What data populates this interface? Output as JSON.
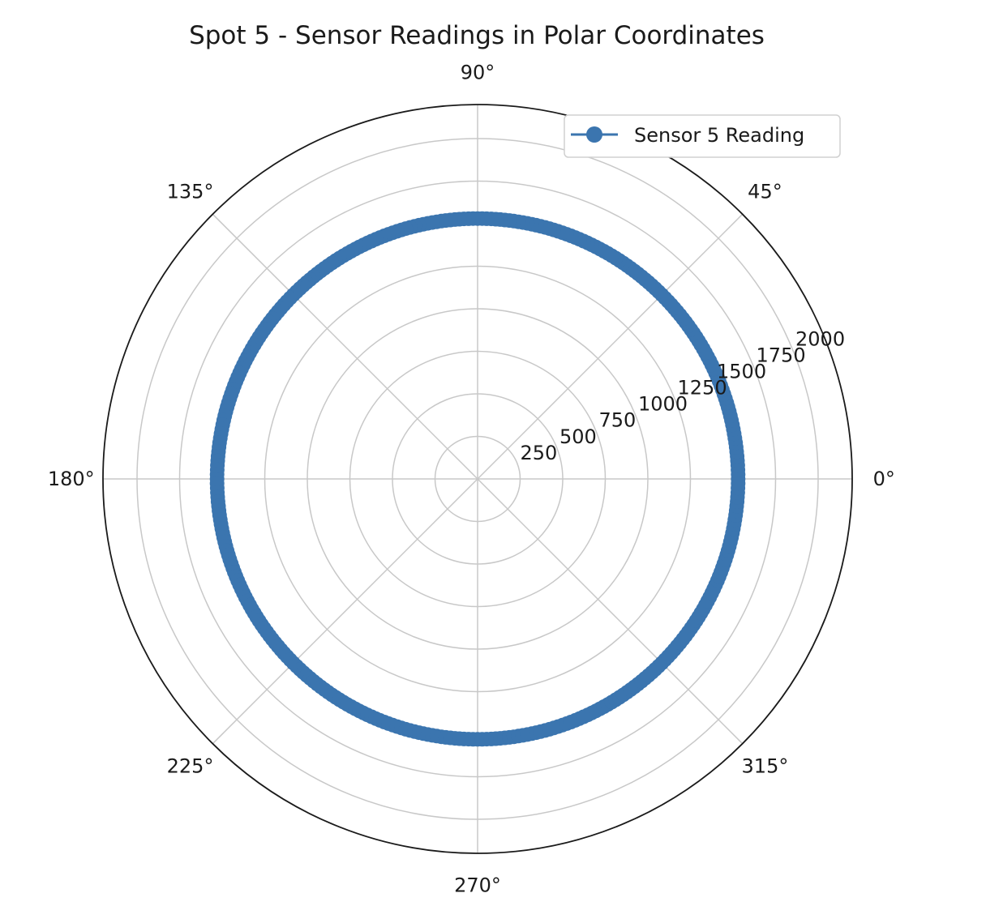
{
  "chart_data": {
    "type": "line",
    "projection": "polar",
    "title": "Spot 5 - Sensor Readings in Polar Coordinates",
    "angular_ticks": [
      "0°",
      "45°",
      "90°",
      "135°",
      "180°",
      "225°",
      "270°",
      "315°"
    ],
    "angular_tick_values_deg": [
      0,
      45,
      90,
      135,
      180,
      225,
      270,
      315
    ],
    "radial_ticks": [
      "250",
      "500",
      "750",
      "1000",
      "1250",
      "1500",
      "1750",
      "2000"
    ],
    "radial_tick_values": [
      250,
      500,
      750,
      1000,
      1250,
      1500,
      1750,
      2000
    ],
    "rlim": [
      0,
      2200
    ],
    "grid": true,
    "legend_position": "top-right",
    "color": "#3b75af",
    "series": [
      {
        "name": "Sensor 5 Reading",
        "marker": "circle",
        "theta_deg": [
          0,
          1,
          2,
          3,
          4,
          5,
          6,
          7,
          8,
          9,
          10,
          11,
          12,
          13,
          14,
          15,
          16,
          17,
          18,
          19,
          20,
          21,
          22,
          23,
          24,
          25,
          26,
          27,
          28,
          29,
          30,
          31,
          32,
          33,
          34,
          35,
          36,
          37,
          38,
          39,
          40,
          41,
          42,
          43,
          44,
          45,
          46,
          47,
          48,
          49,
          50,
          51,
          52,
          53,
          54,
          55,
          56,
          57,
          58,
          59,
          60,
          61,
          62,
          63,
          64,
          65,
          66,
          67,
          68,
          69,
          70,
          71,
          72,
          73,
          74,
          75,
          76,
          77,
          78,
          79,
          80,
          81,
          82,
          83,
          84,
          85,
          86,
          87,
          88,
          89,
          90,
          91,
          92,
          93,
          94,
          95,
          96,
          97,
          98,
          99,
          100,
          101,
          102,
          103,
          104,
          105,
          106,
          107,
          108,
          109,
          110,
          111,
          112,
          113,
          114,
          115,
          116,
          117,
          118,
          119,
          120,
          121,
          122,
          123,
          124,
          125,
          126,
          127,
          128,
          129,
          130,
          131,
          132,
          133,
          134,
          135,
          136,
          137,
          138,
          139,
          140,
          141,
          142,
          143,
          144,
          145,
          146,
          147,
          148,
          149,
          150,
          151,
          152,
          153,
          154,
          155,
          156,
          157,
          158,
          159,
          160,
          161,
          162,
          163,
          164,
          165,
          166,
          167,
          168,
          169,
          170,
          171,
          172,
          173,
          174,
          175,
          176,
          177,
          178,
          179,
          180,
          181,
          182,
          183,
          184,
          185,
          186,
          187,
          188,
          189,
          190,
          191,
          192,
          193,
          194,
          195,
          196,
          197,
          198,
          199,
          200,
          201,
          202,
          203,
          204,
          205,
          206,
          207,
          208,
          209,
          210,
          211,
          212,
          213,
          214,
          215,
          216,
          217,
          218,
          219,
          220,
          221,
          222,
          223,
          224,
          225,
          226,
          227,
          228,
          229,
          230,
          231,
          232,
          233,
          234,
          235,
          236,
          237,
          238,
          239,
          240,
          241,
          242,
          243,
          244,
          245,
          246,
          247,
          248,
          249,
          250,
          251,
          252,
          253,
          254,
          255,
          256,
          257,
          258,
          259,
          260,
          261,
          262,
          263,
          264,
          265,
          266,
          267,
          268,
          269,
          270,
          271,
          272,
          273,
          274,
          275,
          276,
          277,
          278,
          279,
          280,
          281,
          282,
          283,
          284,
          285,
          286,
          287,
          288,
          289,
          290,
          291,
          292,
          293,
          294,
          295,
          296,
          297,
          298,
          299,
          300,
          301,
          302,
          303,
          304,
          305,
          306,
          307,
          308,
          309,
          310,
          311,
          312,
          313,
          314,
          315,
          316,
          317,
          318,
          319,
          320,
          321,
          322,
          323,
          324,
          325,
          326,
          327,
          328,
          329,
          330,
          331,
          332,
          333,
          334,
          335,
          336,
          337,
          338,
          339,
          340,
          341,
          342,
          343,
          344,
          345,
          346,
          347,
          348,
          349,
          350,
          351,
          352,
          353,
          354,
          355,
          356,
          357,
          358,
          359
        ],
        "r": [
          1530,
          1530,
          1530,
          1530,
          1530,
          1530,
          1530,
          1530,
          1530,
          1530,
          1530,
          1530,
          1530,
          1530,
          1530,
          1530,
          1530,
          1530,
          1530,
          1530,
          1530,
          1530,
          1530,
          1530,
          1530,
          1530,
          1530,
          1530,
          1530,
          1530,
          1530,
          1530,
          1530,
          1530,
          1530,
          1530,
          1530,
          1530,
          1530,
          1530,
          1530,
          1530,
          1530,
          1530,
          1530,
          1530,
          1530,
          1530,
          1530,
          1530,
          1530,
          1530,
          1530,
          1530,
          1530,
          1530,
          1530,
          1530,
          1530,
          1530,
          1530,
          1530,
          1530,
          1530,
          1530,
          1530,
          1530,
          1530,
          1530,
          1530,
          1530,
          1530,
          1530,
          1530,
          1530,
          1530,
          1530,
          1530,
          1530,
          1530,
          1530,
          1530,
          1530,
          1530,
          1530,
          1530,
          1530,
          1530,
          1530,
          1530,
          1530,
          1530,
          1530,
          1530,
          1530,
          1530,
          1530,
          1530,
          1530,
          1530,
          1530,
          1530,
          1530,
          1530,
          1530,
          1530,
          1530,
          1530,
          1530,
          1530,
          1530,
          1530,
          1530,
          1530,
          1530,
          1530,
          1530,
          1530,
          1530,
          1530,
          1530,
          1530,
          1530,
          1530,
          1530,
          1530,
          1530,
          1530,
          1530,
          1530,
          1530,
          1530,
          1530,
          1530,
          1530,
          1530,
          1530,
          1530,
          1530,
          1530,
          1530,
          1530,
          1530,
          1530,
          1530,
          1530,
          1530,
          1530,
          1530,
          1530,
          1530,
          1530,
          1530,
          1530,
          1530,
          1530,
          1530,
          1530,
          1530,
          1530,
          1530,
          1530,
          1530,
          1530,
          1530,
          1530,
          1530,
          1530,
          1530,
          1530,
          1530,
          1530,
          1530,
          1530,
          1530,
          1530,
          1530,
          1530,
          1530,
          1530,
          1530,
          1530,
          1530,
          1530,
          1530,
          1530,
          1530,
          1530,
          1530,
          1530,
          1530,
          1530,
          1530,
          1530,
          1530,
          1530,
          1530,
          1530,
          1530,
          1530,
          1530,
          1530,
          1530,
          1530,
          1530,
          1530,
          1530,
          1530,
          1530,
          1530,
          1530,
          1530,
          1530,
          1530,
          1530,
          1530,
          1530,
          1530,
          1530,
          1530,
          1530,
          1530,
          1530,
          1530,
          1530,
          1530,
          1530,
          1530,
          1530,
          1530,
          1530,
          1530,
          1530,
          1530,
          1530,
          1530,
          1530,
          1530,
          1530,
          1530,
          1530,
          1530,
          1530,
          1530,
          1530,
          1530,
          1530,
          1530,
          1530,
          1530,
          1530,
          1530,
          1530,
          1530,
          1530,
          1530,
          1530,
          1530,
          1530,
          1530,
          1530,
          1530,
          1530,
          1530,
          1530,
          1530,
          1530,
          1530,
          1530,
          1530,
          1530,
          1530,
          1530,
          1530,
          1530,
          1530,
          1530,
          1530,
          1530,
          1530,
          1530,
          1530,
          1530,
          1530,
          1530,
          1530,
          1530,
          1530,
          1530,
          1530,
          1530,
          1530,
          1530,
          1530,
          1530,
          1530,
          1530,
          1530,
          1530,
          1530,
          1530,
          1530,
          1530,
          1530,
          1530,
          1530,
          1530,
          1530,
          1530,
          1530,
          1530,
          1530,
          1530,
          1530,
          1530,
          1530,
          1530,
          1530,
          1530,
          1530,
          1530,
          1530,
          1530,
          1530,
          1530,
          1530,
          1530,
          1530,
          1530,
          1530,
          1530,
          1530,
          1530,
          1530,
          1530,
          1530,
          1530,
          1530,
          1530,
          1530,
          1530,
          1530,
          1530,
          1530,
          1530,
          1530,
          1530,
          1530,
          1530,
          1530,
          1530,
          1530,
          1530,
          1530,
          1530,
          1530,
          1530,
          1530,
          1530,
          1530,
          1530,
          1530,
          1530,
          1530,
          1530,
          1530,
          1530,
          1530,
          1530,
          1530,
          1530,
          1530,
          1530
        ]
      }
    ]
  }
}
